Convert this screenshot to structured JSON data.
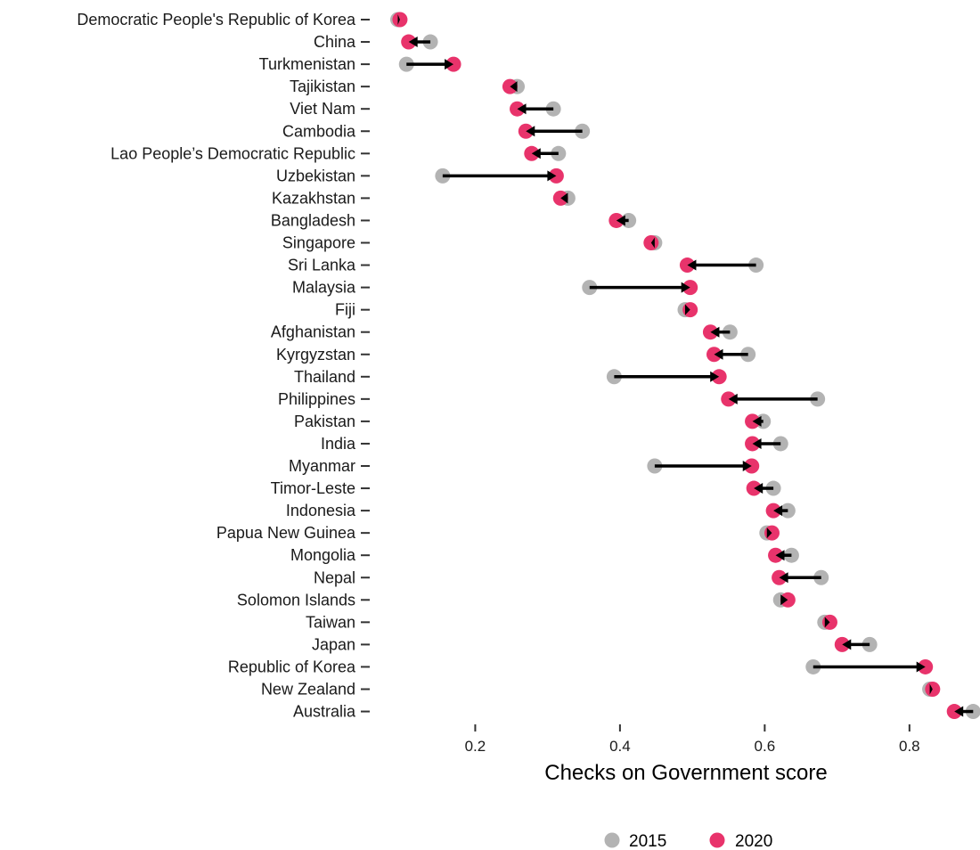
{
  "chart_data": {
    "type": "dumbbell",
    "title": "",
    "xlabel": "Checks on Government score",
    "ylabel": "",
    "xlim": [
      0.085,
      0.895
    ],
    "xticks": [
      0.2,
      0.4,
      0.6,
      0.8
    ],
    "xtick_labels": [
      "0.2",
      "0.4",
      "0.6",
      "0.8"
    ],
    "grid": false,
    "legend_position": "bottom",
    "categories": [
      "Democratic People's Republic of Korea",
      "China",
      "Turkmenistan",
      "Tajikistan",
      "Viet Nam",
      "Cambodia",
      "Lao People’s Democratic Republic",
      "Uzbekistan",
      "Kazakhstan",
      "Bangladesh",
      "Singapore",
      "Sri Lanka",
      "Malaysia",
      "Fiji",
      "Afghanistan",
      "Kyrgyzstan",
      "Thailand",
      "Philippines",
      "Pakistan",
      "India",
      "Myanmar",
      "Timor-Leste",
      "Indonesia",
      "Papua New Guinea",
      "Mongolia",
      "Nepal",
      "Solomon Islands",
      "Taiwan",
      "Japan",
      "Republic of Korea",
      "New Zealand",
      "Australia"
    ],
    "series": [
      {
        "name": "2015",
        "color": "#b3b3b3",
        "values": [
          0.093,
          0.138,
          0.105,
          0.258,
          0.308,
          0.348,
          0.315,
          0.155,
          0.328,
          0.412,
          0.448,
          0.588,
          0.358,
          0.49,
          0.552,
          0.577,
          0.392,
          0.673,
          0.598,
          0.622,
          0.448,
          0.612,
          0.632,
          0.603,
          0.637,
          0.678,
          0.622,
          0.683,
          0.745,
          0.667,
          0.828,
          0.888
        ]
      },
      {
        "name": "2020",
        "color": "#e8336b",
        "values": [
          0.096,
          0.108,
          0.17,
          0.248,
          0.258,
          0.27,
          0.278,
          0.312,
          0.318,
          0.395,
          0.443,
          0.493,
          0.497,
          0.497,
          0.525,
          0.53,
          0.537,
          0.55,
          0.583,
          0.583,
          0.582,
          0.585,
          0.612,
          0.61,
          0.615,
          0.62,
          0.632,
          0.69,
          0.707,
          0.822,
          0.832,
          0.862
        ]
      }
    ]
  }
}
